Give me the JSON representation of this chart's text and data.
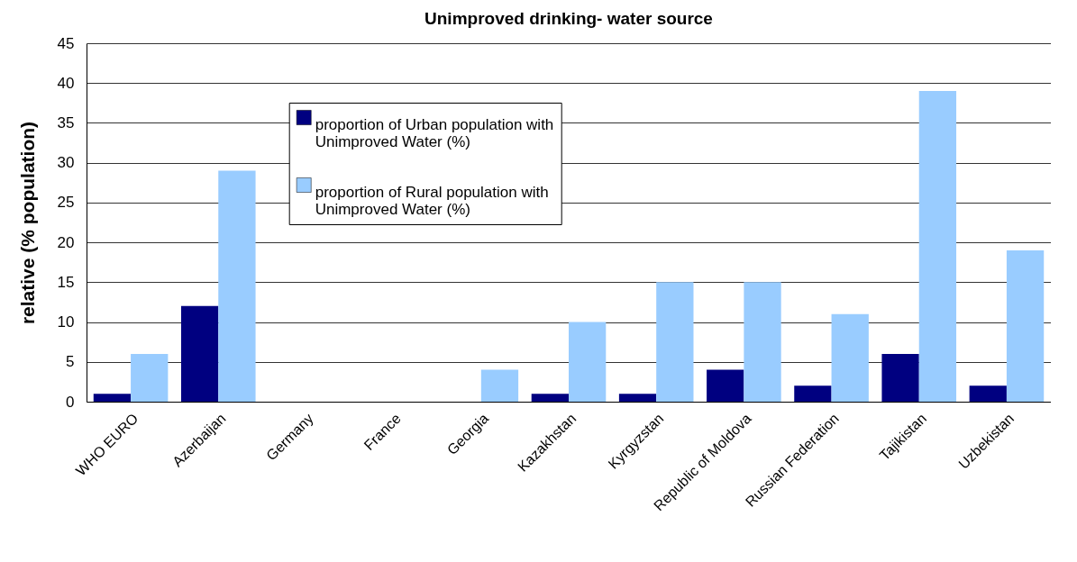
{
  "chart_data": {
    "type": "bar",
    "title": "Unimproved drinking- water source",
    "ylabel": "relative (% population)",
    "categories": [
      "WHO EURO",
      "Azerbaijan",
      "Germany",
      "France",
      "Georgia",
      "Kazakhstan",
      "Kyrgyzstan",
      "Republic of Moldova",
      "Russian Federation",
      "Tajikistan",
      "Uzbekistan"
    ],
    "series": [
      {
        "name": "proportion of Urban population with Unimproved Water (%)",
        "color": "#000080",
        "values": [
          1,
          12,
          0,
          0,
          0,
          1,
          1,
          4,
          2,
          6,
          2
        ]
      },
      {
        "name": "proportion of Rural population with Unimproved Water (%)",
        "color": "#99ccff",
        "values": [
          6,
          29,
          0,
          0,
          4,
          10,
          15,
          15,
          11,
          39,
          19
        ]
      }
    ],
    "ylim": [
      0,
      45
    ],
    "yticks": [
      0,
      5,
      10,
      15,
      20,
      25,
      30,
      35,
      40,
      45
    ],
    "grid": "y",
    "legend": "top"
  }
}
